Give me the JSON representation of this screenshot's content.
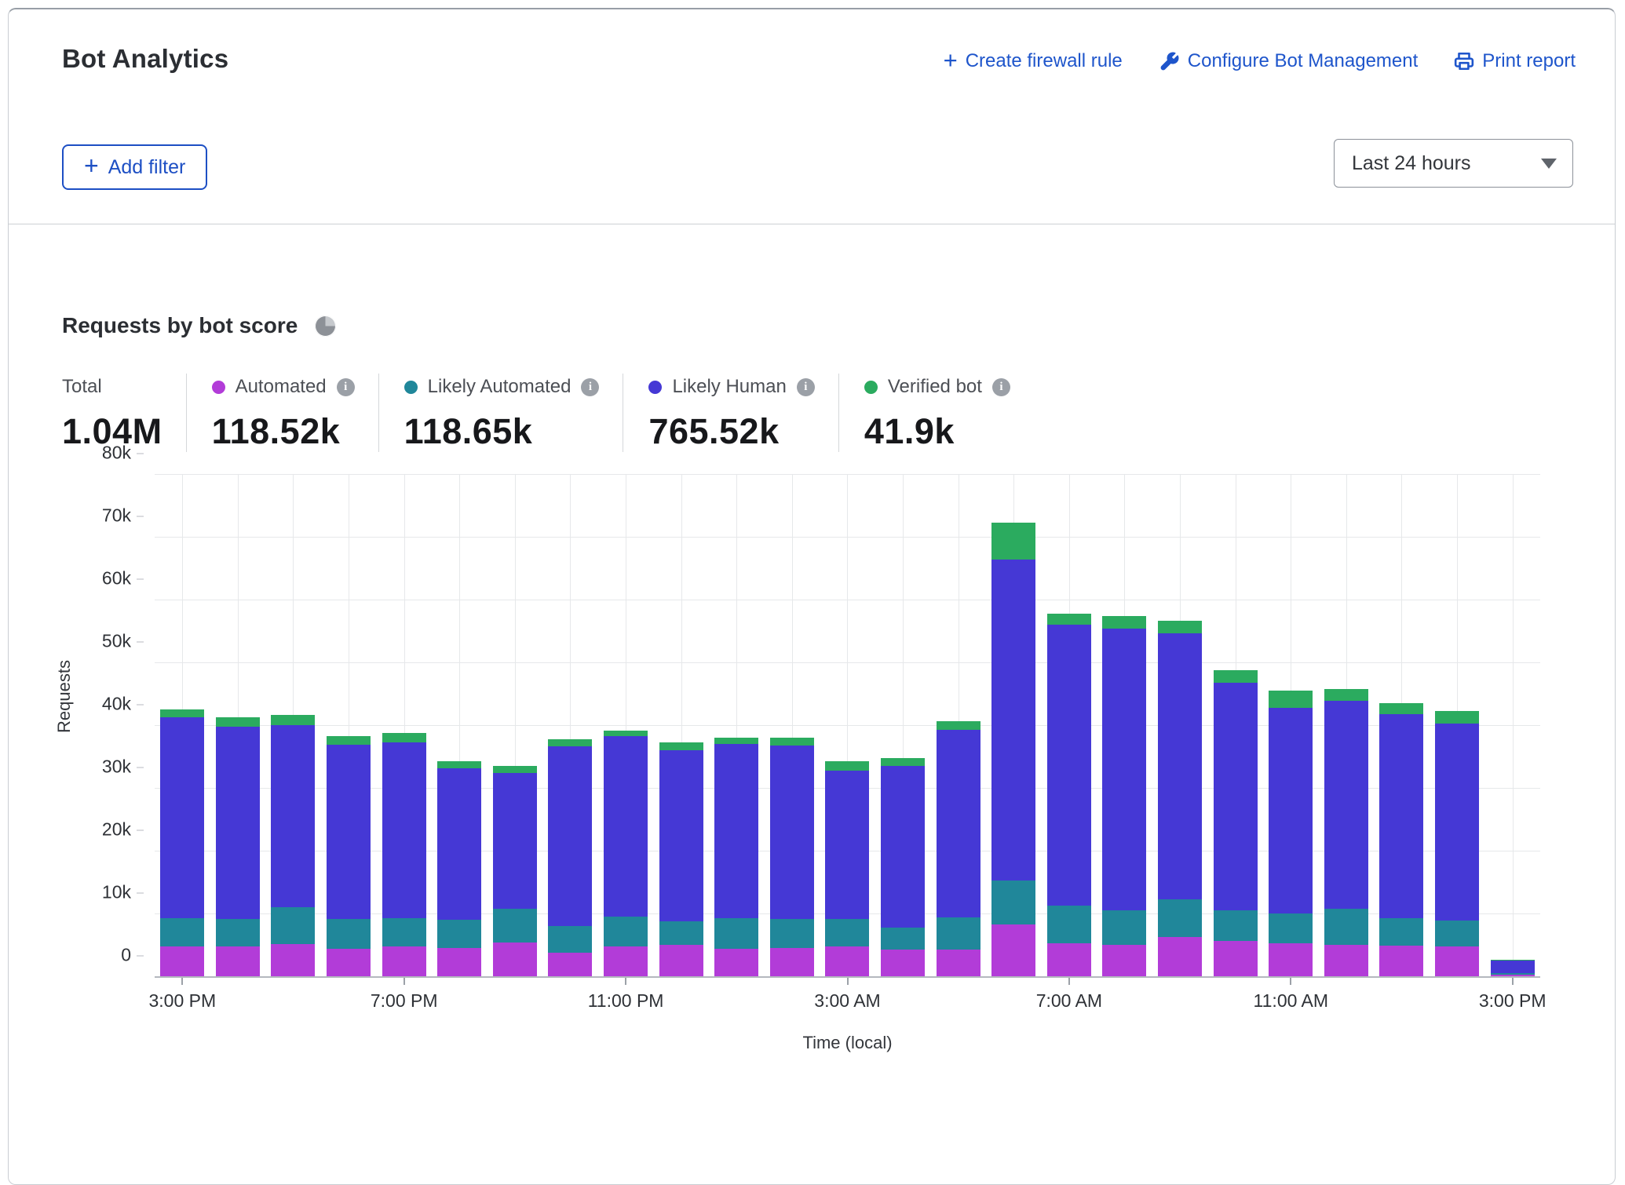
{
  "header": {
    "title": "Bot Analytics",
    "actions": [
      {
        "icon": "plus-icon",
        "label": "Create firewall rule"
      },
      {
        "icon": "wrench-icon",
        "label": "Configure Bot Management"
      },
      {
        "icon": "printer-icon",
        "label": "Print report"
      }
    ]
  },
  "filter": {
    "plus": "+",
    "add_filter_label": "Add filter",
    "time_range_value": "Last 24 hours"
  },
  "section": {
    "title": "Requests by bot score"
  },
  "colors": {
    "automated": "#b23cd8",
    "likely_automated": "#20879a",
    "likely_human": "#4538d5",
    "verified_bot": "#2bab5f",
    "link_blue": "#1e55cb",
    "grid": "#e6e8ea"
  },
  "stats": {
    "items": [
      {
        "label": "Total",
        "value": "1.04M",
        "color": null,
        "info": false
      },
      {
        "label": "Automated",
        "value": "118.52k",
        "color": "#b23cd8",
        "info": true
      },
      {
        "label": "Likely Automated",
        "value": "118.65k",
        "color": "#20879a",
        "info": true
      },
      {
        "label": "Likely Human",
        "value": "765.52k",
        "color": "#4538d5",
        "info": true
      },
      {
        "label": "Verified bot",
        "value": "41.9k",
        "color": "#2bab5f",
        "info": true
      }
    ]
  },
  "chart_data": {
    "type": "bar",
    "stacked": true,
    "title": "Requests by bot score",
    "xlabel": "Time (local)",
    "ylabel": "Requests",
    "ylim": [
      0,
      80000
    ],
    "grid": true,
    "y_tick_labels": [
      "0",
      "10k",
      "20k",
      "30k",
      "40k",
      "50k",
      "60k",
      "70k",
      "80k"
    ],
    "x_tick_labels": [
      "3:00 PM",
      "7:00 PM",
      "11:00 PM",
      "3:00 AM",
      "7:00 AM",
      "11:00 AM",
      "3:00 PM"
    ],
    "x_tick_slots": [
      0,
      4,
      8,
      12,
      16,
      20,
      24
    ],
    "legend_entries": [
      "Automated",
      "Likely Automated",
      "Likely Human",
      "Verified bot"
    ],
    "series_order": [
      "automated",
      "likely_automated",
      "likely_human",
      "verified_bot"
    ],
    "bars": [
      {
        "automated": 4700,
        "likely_automated": 4500,
        "likely_human": 32100,
        "verified_bot": 1200
      },
      {
        "automated": 4800,
        "likely_automated": 4300,
        "likely_human": 30700,
        "verified_bot": 1400
      },
      {
        "automated": 5100,
        "likely_automated": 5900,
        "likely_human": 29000,
        "verified_bot": 1600
      },
      {
        "automated": 4400,
        "likely_automated": 4700,
        "likely_human": 27800,
        "verified_bot": 1400
      },
      {
        "automated": 4700,
        "likely_automated": 4600,
        "likely_human": 27900,
        "verified_bot": 1500
      },
      {
        "automated": 4500,
        "likely_automated": 4500,
        "likely_human": 24100,
        "verified_bot": 1200
      },
      {
        "automated": 5400,
        "likely_automated": 5400,
        "likely_human": 21600,
        "verified_bot": 1100
      },
      {
        "automated": 3800,
        "likely_automated": 4200,
        "likely_human": 28600,
        "verified_bot": 1100
      },
      {
        "automated": 4800,
        "likely_automated": 4700,
        "likely_human": 28700,
        "verified_bot": 900
      },
      {
        "automated": 5000,
        "likely_automated": 3800,
        "likely_human": 27200,
        "verified_bot": 1200
      },
      {
        "automated": 4400,
        "likely_automated": 4800,
        "likely_human": 27800,
        "verified_bot": 1000
      },
      {
        "automated": 4500,
        "likely_automated": 4600,
        "likely_human": 27700,
        "verified_bot": 1200
      },
      {
        "automated": 4700,
        "likely_automated": 4400,
        "likely_human": 23600,
        "verified_bot": 1500
      },
      {
        "automated": 4200,
        "likely_automated": 3600,
        "likely_human": 25700,
        "verified_bot": 1300
      },
      {
        "automated": 4300,
        "likely_automated": 5100,
        "likely_human": 29800,
        "verified_bot": 1400
      },
      {
        "automated": 8300,
        "likely_automated": 7000,
        "likely_human": 51100,
        "verified_bot": 5800
      },
      {
        "automated": 5300,
        "likely_automated": 6000,
        "likely_human": 44700,
        "verified_bot": 1800
      },
      {
        "automated": 5000,
        "likely_automated": 5500,
        "likely_human": 44900,
        "verified_bot": 2000
      },
      {
        "automated": 6300,
        "likely_automated": 5900,
        "likely_human": 42400,
        "verified_bot": 2000
      },
      {
        "automated": 5600,
        "likely_automated": 4900,
        "likely_human": 36200,
        "verified_bot": 2100
      },
      {
        "automated": 5200,
        "likely_automated": 4800,
        "likely_human": 32700,
        "verified_bot": 2800
      },
      {
        "automated": 5000,
        "likely_automated": 5800,
        "likely_human": 33100,
        "verified_bot": 1800
      },
      {
        "automated": 4900,
        "likely_automated": 4300,
        "likely_human": 32500,
        "verified_bot": 1800
      },
      {
        "automated": 4800,
        "likely_automated": 4100,
        "likely_human": 31400,
        "verified_bot": 2000
      },
      {
        "automated": 200,
        "likely_automated": 300,
        "likely_human": 2000,
        "verified_bot": 100
      }
    ]
  }
}
